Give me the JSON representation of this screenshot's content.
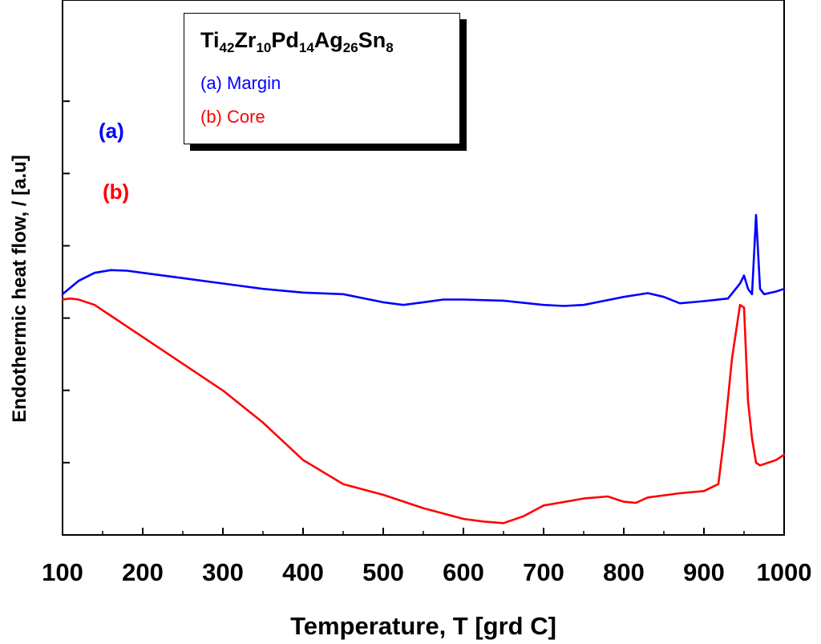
{
  "chart_data": {
    "type": "line",
    "xlabel": "Temperature, T [grd C]",
    "ylabel": "Endothermic heat flow, / [a.u]",
    "xlim": [
      100,
      1000
    ],
    "ylim": [
      0,
      10
    ],
    "xticks": [
      100,
      200,
      300,
      400,
      500,
      600,
      700,
      800,
      900,
      1000
    ],
    "yticks": [
      1,
      2,
      3,
      4,
      5,
      6
    ],
    "show_y_tick_labels": false,
    "legend": {
      "title_parts": [
        {
          "el": "Ti",
          "sub": "42"
        },
        {
          "el": "Zr",
          "sub": "10"
        },
        {
          "el": "Pd",
          "sub": "14"
        },
        {
          "el": "Ag",
          "sub": "26"
        },
        {
          "el": "Sn",
          "sub": "8"
        }
      ],
      "entries": [
        {
          "label": "(a) Margin",
          "color": "#0000ff"
        },
        {
          "label": "(b) Core",
          "color": "#ff0000"
        }
      ],
      "placement": "top-left"
    },
    "series": [
      {
        "name": "(a) Margin",
        "tag": "(a)",
        "color": "#0000ff",
        "x": [
          100,
          120,
          140,
          160,
          180,
          200,
          250,
          300,
          350,
          400,
          450,
          500,
          525,
          550,
          575,
          600,
          650,
          700,
          725,
          750,
          800,
          830,
          850,
          870,
          900,
          930,
          945,
          950,
          955,
          960,
          965,
          970,
          975,
          990,
          1000
        ],
        "y": [
          4.5,
          4.75,
          4.9,
          4.95,
          4.94,
          4.9,
          4.8,
          4.7,
          4.6,
          4.53,
          4.5,
          4.35,
          4.3,
          4.35,
          4.4,
          4.4,
          4.38,
          4.3,
          4.28,
          4.3,
          4.45,
          4.52,
          4.45,
          4.33,
          4.37,
          4.42,
          4.7,
          4.85,
          4.6,
          4.5,
          5.98,
          4.6,
          4.5,
          4.55,
          4.6
        ]
      },
      {
        "name": "(b) Core",
        "tag": "(b)",
        "color": "#ff0000",
        "x": [
          100,
          110,
          120,
          140,
          160,
          200,
          250,
          300,
          350,
          400,
          450,
          500,
          550,
          600,
          625,
          650,
          675,
          700,
          750,
          780,
          800,
          815,
          830,
          870,
          900,
          918,
          925,
          935,
          945,
          950,
          955,
          960,
          965,
          970,
          990,
          1000
        ],
        "y": [
          4.4,
          4.42,
          4.4,
          4.3,
          4.1,
          3.7,
          3.2,
          2.7,
          2.1,
          1.4,
          0.95,
          0.75,
          0.5,
          0.3,
          0.25,
          0.22,
          0.35,
          0.55,
          0.68,
          0.72,
          0.62,
          0.6,
          0.7,
          0.78,
          0.82,
          0.95,
          1.8,
          3.3,
          4.3,
          4.25,
          2.5,
          1.8,
          1.35,
          1.3,
          1.4,
          1.5
        ]
      }
    ]
  }
}
